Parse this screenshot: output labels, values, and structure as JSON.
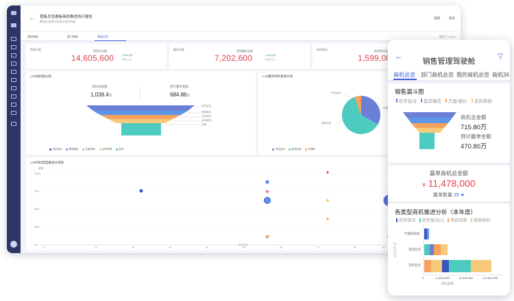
{
  "desktop": {
    "header": {
      "title": "销售总览看板商机推进执行报告",
      "subtitle": "覆盖全部商机及预计成交阶段",
      "btn_view": "视图",
      "btn_more": "更多"
    },
    "tabs": [
      {
        "label": "我的商机"
      },
      {
        "label": "部门商机"
      },
      {
        "label": "商机总览"
      }
    ],
    "updated": "更新于 10:00",
    "kpis": [
      {
        "caption": "销售总额",
        "label": "预测总金额",
        "value": "14,605,600",
        "sub1": "2,060,000",
        "sub2": "环比上月"
      },
      {
        "caption": "赢单金额",
        "label": "预测赢单金额",
        "value": "7,202,600",
        "sub1": "1,050,000",
        "sub2": "环比上月"
      },
      {
        "caption": "新增商机",
        "label": "新增商机金额",
        "value": "1,599,000",
        "sub1": "320,000",
        "sub2": "环比上月"
      }
    ],
    "funnel_card": {
      "title": "LJO商机漏斗图",
      "metric1_label": "商机总金额",
      "metric1_value": "1,038.4",
      "metric1_unit": "万",
      "metric2_label": "预计赢单金额",
      "metric2_value": "684.86",
      "metric2_unit": "万",
      "stage_labels": [
        "初步接洽",
        "需求确定",
        "方案/报价",
        "谈判审核",
        "赢单"
      ],
      "legend": [
        "初步接洽",
        "需求确定",
        "方案/报价",
        "谈判审核",
        "赢单"
      ]
    },
    "pie_card": {
      "title": "LJO赢单商机来源分布",
      "labels": [
        "代理商",
        "官网注册",
        "市场活动"
      ],
      "legend": [
        "市场活动",
        "官网注册",
        "代理商"
      ]
    },
    "scatter_card": {
      "title": "LJO商机类型推进分布图",
      "y_axis": "金额",
      "x_axis": "推进天数",
      "y_ticks": [
        "0%",
        "25%",
        "50%",
        "75%",
        "100%"
      ],
      "x_ticks": [
        "0",
        "10",
        "20",
        "30",
        "40",
        "50",
        "60",
        "70",
        "80",
        "90",
        "100"
      ]
    }
  },
  "mobile": {
    "title": "销售管理驾驶舱",
    "tabs": [
      {
        "label": "商机总览"
      },
      {
        "label": "部门商机总览"
      },
      {
        "label": "我的商机总览"
      },
      {
        "label": "商机36"
      }
    ],
    "funnel": {
      "title": "销售漏斗图",
      "legend": [
        "初步接洽",
        "需求确定",
        "方案/报价",
        "谈判审核"
      ],
      "label1": "商机总金额",
      "value1": "715.80万",
      "label2": "预计赢单金额",
      "value2": "470.80万"
    },
    "won": {
      "caption": "赢单商机总金额",
      "currency": "¥",
      "value": "11,478,000",
      "count_label": "赢单数量",
      "count": "15",
      "star": "★"
    },
    "progress": {
      "title": "各类型商机推进分析（本年度）",
      "legend": [
        "初步接洽",
        "初步接洽(1)",
        "项目线索",
        "发现商机"
      ],
      "y_axis": "商机类型",
      "categories": [
        "代理商商机",
        "电话业务",
        "至新业务"
      ],
      "x_ticks": [
        "0",
        "4,000,000",
        "8,000,000",
        "12,000,000"
      ],
      "x_axis": "商机金额"
    }
  },
  "colors": {
    "accent": "#3a5bd9",
    "red": "#e0434b",
    "funnel": [
      "#6b7fd7",
      "#5b96e8",
      "#f6a15c",
      "#f7c97a",
      "#4ecbc0"
    ]
  }
}
